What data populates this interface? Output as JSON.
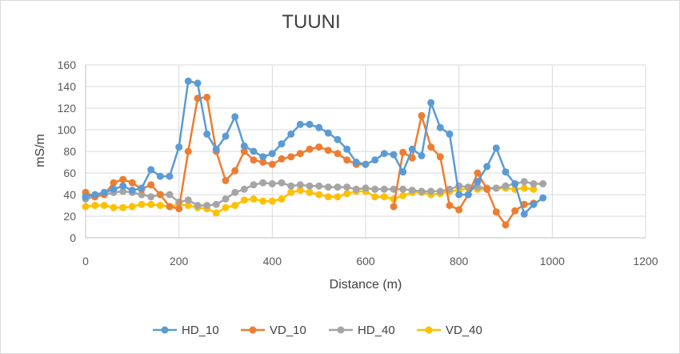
{
  "chart_data": {
    "type": "line",
    "title": "TUUNI",
    "xlabel": "Distance (m)",
    "ylabel": "mS/m",
    "xlim": [
      0,
      1200
    ],
    "ylim": [
      0,
      160
    ],
    "xticks": [
      0,
      200,
      400,
      600,
      800,
      1000,
      1200
    ],
    "yticks": [
      0,
      20,
      40,
      60,
      80,
      100,
      120,
      140,
      160
    ],
    "grid": true,
    "legend": "bottom",
    "series": [
      {
        "name": "HD_10",
        "color": "#5B9BD5",
        "x": [
          0,
          20,
          40,
          60,
          80,
          100,
          120,
          140,
          160,
          180,
          200,
          220,
          240,
          260,
          280,
          300,
          320,
          340,
          360,
          380,
          400,
          420,
          440,
          460,
          480,
          500,
          520,
          540,
          560,
          580,
          600,
          620,
          640,
          660,
          680,
          700,
          720,
          740,
          760,
          780,
          800,
          820,
          840,
          860,
          880,
          900,
          920,
          940,
          960,
          980
        ],
        "y": [
          38,
          40,
          42,
          45,
          48,
          44,
          46,
          63,
          57,
          57,
          84,
          145,
          143,
          96,
          82,
          94,
          112,
          85,
          80,
          75,
          78,
          87,
          96,
          105,
          105,
          102,
          97,
          91,
          82,
          70,
          68,
          72,
          78,
          77,
          61,
          82,
          76,
          125,
          102,
          96,
          40,
          40,
          52,
          66,
          83,
          61,
          50,
          22,
          31,
          37
        ]
      },
      {
        "name": "VD_10",
        "color": "#ED7D31",
        "x": [
          0,
          20,
          40,
          60,
          80,
          100,
          120,
          140,
          160,
          180,
          200,
          220,
          240,
          260,
          280,
          300,
          320,
          340,
          360,
          380,
          400,
          420,
          440,
          460,
          480,
          500,
          520,
          540,
          560,
          580,
          600,
          620,
          640,
          660,
          680,
          700,
          720,
          740,
          760,
          780,
          800,
          820,
          840,
          860,
          880,
          900,
          920,
          940,
          960
        ],
        "y": [
          42,
          38,
          40,
          51,
          54,
          51,
          45,
          49,
          40,
          29,
          27,
          80,
          129,
          130,
          80,
          53,
          62,
          80,
          72,
          70,
          68,
          73,
          75,
          78,
          82,
          84,
          81,
          78,
          72,
          68,
          68,
          null,
          null,
          29,
          79,
          74,
          113,
          84,
          75,
          30,
          26,
          40,
          60,
          45,
          24,
          12,
          25,
          31,
          32
        ]
      },
      {
        "name": "HD_40",
        "color": "#A5A5A5",
        "x": [
          0,
          20,
          40,
          60,
          80,
          100,
          120,
          140,
          160,
          180,
          200,
          220,
          240,
          260,
          280,
          300,
          320,
          340,
          360,
          380,
          400,
          420,
          440,
          460,
          480,
          500,
          520,
          540,
          560,
          580,
          600,
          620,
          640,
          660,
          680,
          700,
          720,
          740,
          760,
          780,
          800,
          820,
          840,
          860,
          880,
          900,
          920,
          940,
          960,
          980
        ],
        "y": [
          36,
          38,
          40,
          42,
          43,
          42,
          40,
          38,
          40,
          40,
          33,
          35,
          30,
          30,
          31,
          36,
          42,
          45,
          49,
          51,
          50,
          51,
          48,
          49,
          48,
          48,
          47,
          47,
          47,
          45,
          46,
          45,
          45,
          45,
          45,
          44,
          43,
          43,
          43,
          45,
          48,
          47,
          47,
          46,
          46,
          48,
          50,
          52,
          50,
          50
        ]
      },
      {
        "name": "VD_40",
        "color": "#FFC000",
        "x": [
          0,
          20,
          40,
          60,
          80,
          100,
          120,
          140,
          160,
          180,
          200,
          220,
          240,
          260,
          280,
          300,
          320,
          340,
          360,
          380,
          400,
          420,
          440,
          460,
          480,
          500,
          520,
          540,
          560,
          580,
          600,
          620,
          640,
          660,
          680,
          700,
          720,
          740,
          760,
          780,
          800,
          820,
          840,
          860,
          880,
          900,
          920,
          940,
          960
        ],
        "y": [
          29,
          30,
          30,
          28,
          28,
          29,
          31,
          31,
          30,
          29,
          31,
          30,
          28,
          27,
          23,
          28,
          30,
          35,
          36,
          34,
          34,
          36,
          42,
          44,
          42,
          40,
          38,
          38,
          41,
          43,
          43,
          38,
          38,
          36,
          39,
          42,
          42,
          40,
          41,
          43,
          44,
          46,
          45,
          45,
          46,
          46,
          45,
          46,
          45
        ]
      }
    ]
  }
}
